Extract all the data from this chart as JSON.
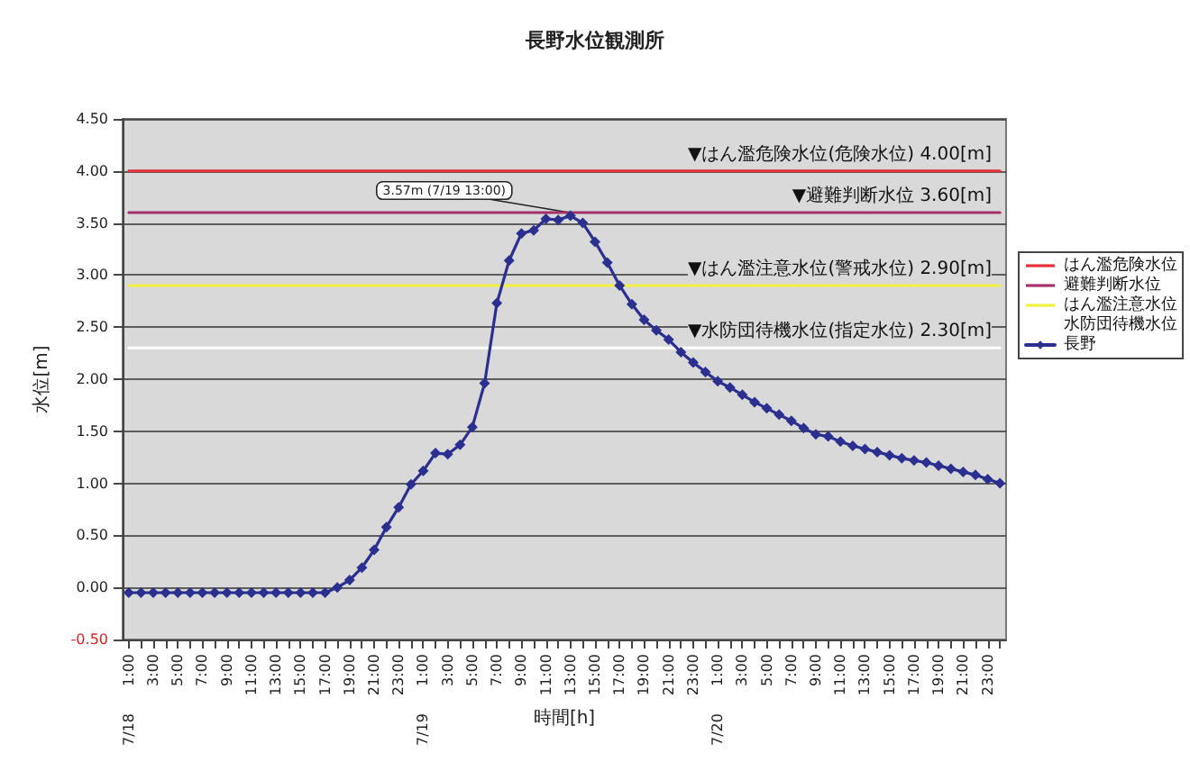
{
  "chart_data": {
    "type": "line",
    "title": "長野水位観測所",
    "xlabel": "時間[h]",
    "ylabel": "水位[m]",
    "categories": [
      "1:00",
      null,
      "3:00",
      null,
      "5:00",
      null,
      "7:00",
      null,
      "9:00",
      null,
      "11:00",
      null,
      "13:00",
      null,
      "15:00",
      null,
      "17:00",
      null,
      "19:00",
      null,
      "21:00",
      null,
      "23:00",
      null,
      "1:00",
      null,
      "3:00",
      null,
      "5:00",
      null,
      "7:00",
      null,
      "9:00",
      null,
      "11:00",
      null,
      "13:00",
      null,
      "15:00",
      null,
      "17:00",
      null,
      "19:00",
      null,
      "21:00",
      null,
      "23:00",
      null,
      "1:00",
      null,
      "3:00",
      null,
      "5:00",
      null,
      "7:00",
      null,
      "9:00",
      null,
      "11:00",
      null,
      "13:00",
      null,
      "15:00",
      null,
      "17:00",
      null,
      "19:00",
      null,
      "21:00",
      null,
      "23:00",
      null
    ],
    "series": [
      {
        "name": "はん濫危険水位",
        "color": "#e8303a",
        "marker": "none",
        "values": [
          4,
          4,
          4,
          4,
          4,
          4,
          4,
          4,
          4,
          4,
          4,
          4,
          4,
          4,
          4,
          4,
          4,
          4,
          4,
          4,
          4,
          4,
          4,
          4,
          4,
          4,
          4,
          4,
          4,
          4,
          4,
          4,
          4,
          4,
          4,
          4,
          4,
          4,
          4,
          4,
          4,
          4,
          4,
          4,
          4,
          4,
          4,
          4,
          4,
          4,
          4,
          4,
          4,
          4,
          4,
          4,
          4,
          4,
          4,
          4,
          4,
          4,
          4,
          4,
          4,
          4,
          4,
          4,
          4,
          4,
          4,
          4
        ]
      },
      {
        "name": "避難判断水位",
        "color": "#a8306a",
        "marker": "none",
        "values": [
          3.6,
          3.6,
          3.6,
          3.6,
          3.6,
          3.6,
          3.6,
          3.6,
          3.6,
          3.6,
          3.6,
          3.6,
          3.6,
          3.6,
          3.6,
          3.6,
          3.6,
          3.6,
          3.6,
          3.6,
          3.6,
          3.6,
          3.6,
          3.6,
          3.6,
          3.6,
          3.6,
          3.6,
          3.6,
          3.6,
          3.6,
          3.6,
          3.6,
          3.6,
          3.6,
          3.6,
          3.6,
          3.6,
          3.6,
          3.6,
          3.6,
          3.6,
          3.6,
          3.6,
          3.6,
          3.6,
          3.6,
          3.6,
          3.6,
          3.6,
          3.6,
          3.6,
          3.6,
          3.6,
          3.6,
          3.6,
          3.6,
          3.6,
          3.6,
          3.6,
          3.6,
          3.6,
          3.6,
          3.6,
          3.6,
          3.6,
          3.6,
          3.6,
          3.6,
          3.6,
          3.6,
          3.6
        ]
      },
      {
        "name": "はん濫注意水位",
        "color": "#f2f040",
        "marker": "none",
        "values": [
          2.9,
          2.9,
          2.9,
          2.9,
          2.9,
          2.9,
          2.9,
          2.9,
          2.9,
          2.9,
          2.9,
          2.9,
          2.9,
          2.9,
          2.9,
          2.9,
          2.9,
          2.9,
          2.9,
          2.9,
          2.9,
          2.9,
          2.9,
          2.9,
          2.9,
          2.9,
          2.9,
          2.9,
          2.9,
          2.9,
          2.9,
          2.9,
          2.9,
          2.9,
          2.9,
          2.9,
          2.9,
          2.9,
          2.9,
          2.9,
          2.9,
          2.9,
          2.9,
          2.9,
          2.9,
          2.9,
          2.9,
          2.9,
          2.9,
          2.9,
          2.9,
          2.9,
          2.9,
          2.9,
          2.9,
          2.9,
          2.9,
          2.9,
          2.9,
          2.9,
          2.9,
          2.9,
          2.9,
          2.9,
          2.9,
          2.9,
          2.9,
          2.9,
          2.9,
          2.9,
          2.9,
          2.9
        ]
      },
      {
        "name": "水防団待機水位",
        "color": "#ffffff",
        "marker": "none",
        "values": [
          2.3,
          2.3,
          2.3,
          2.3,
          2.3,
          2.3,
          2.3,
          2.3,
          2.3,
          2.3,
          2.3,
          2.3,
          2.3,
          2.3,
          2.3,
          2.3,
          2.3,
          2.3,
          2.3,
          2.3,
          2.3,
          2.3,
          2.3,
          2.3,
          2.3,
          2.3,
          2.3,
          2.3,
          2.3,
          2.3,
          2.3,
          2.3,
          2.3,
          2.3,
          2.3,
          2.3,
          2.3,
          2.3,
          2.3,
          2.3,
          2.3,
          2.3,
          2.3,
          2.3,
          2.3,
          2.3,
          2.3,
          2.3,
          2.3,
          2.3,
          2.3,
          2.3,
          2.3,
          2.3,
          2.3,
          2.3,
          2.3,
          2.3,
          2.3,
          2.3,
          2.3,
          2.3,
          2.3,
          2.3,
          2.3,
          2.3,
          2.3,
          2.3,
          2.3,
          2.3,
          2.3,
          2.3
        ]
      },
      {
        "name": "長野",
        "color": "#2b2f8f",
        "values": [
          -0.05,
          -0.05,
          -0.05,
          -0.05,
          -0.05,
          -0.05,
          -0.05,
          -0.05,
          -0.05,
          -0.05,
          -0.05,
          -0.05,
          -0.05,
          -0.05,
          -0.05,
          -0.05,
          -0.05,
          0.0,
          0.07,
          0.19,
          0.36,
          0.58,
          0.77,
          0.99,
          1.12,
          1.29,
          1.28,
          1.37,
          1.54,
          1.96,
          2.73,
          3.14,
          3.4,
          3.43,
          3.54,
          3.53,
          3.57,
          3.5,
          3.32,
          3.12,
          2.9,
          2.72,
          2.57,
          2.47,
          2.38,
          2.26,
          2.16,
          2.07,
          1.98,
          1.92,
          1.85,
          1.78,
          1.72,
          1.66,
          1.6,
          1.53,
          1.47,
          1.45,
          1.4,
          1.36,
          1.33,
          1.3,
          1.27,
          1.24,
          1.22,
          1.2,
          1.17,
          1.14,
          1.11,
          1.08,
          1.04,
          1.0
        ]
      }
    ],
    "annotations": [
      {
        "text": "▼はん濫危険水位(危険水位) 4.00[m]",
        "y": 4.0
      },
      {
        "text": "▼避難判断水位 3.60[m]",
        "y": 3.6
      },
      {
        "text": "▼はん濫注意水位(警戒水位) 2.90[m]",
        "y": 2.9
      },
      {
        "text": "▼水防団待機水位(指定水位) 2.30[m]",
        "y": 2.3
      },
      {
        "text": "3.57m (7/19 13:00)",
        "y": 3.57
      },
      "7/18",
      "7/19",
      "7/20"
    ],
    "ylim": [
      -0.5,
      4.5
    ],
    "yticks": [
      {
        "value": -0.5,
        "label": "-0.50"
      },
      {
        "value": 0,
        "label": "0.00"
      },
      {
        "value": 0.5,
        "label": "0.50"
      },
      {
        "value": 1,
        "label": "1.00"
      },
      {
        "value": 1.5,
        "label": "1.50"
      },
      {
        "value": 2,
        "label": "2.00"
      },
      {
        "value": 2.5,
        "label": "2.50"
      },
      {
        "value": 3,
        "label": "3.00"
      },
      {
        "value": 3.5,
        "label": "3.50"
      },
      {
        "value": 4,
        "label": "4.00"
      },
      {
        "value": 4.5,
        "label": "4.50"
      }
    ],
    "grid": "y",
    "legend": "right",
    "marker": "diamond",
    "line_style": "solid"
  }
}
